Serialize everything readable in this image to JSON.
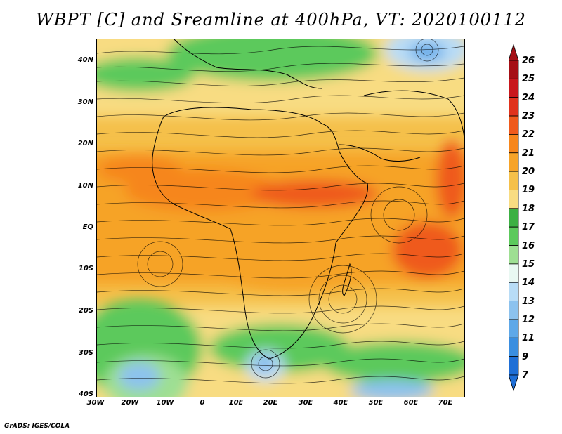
{
  "title": "WBPT [C] and Sreamline at 400hPa, VT: 2020100112",
  "axes": {
    "lat_labels": [
      "40N",
      "30N",
      "20N",
      "10N",
      "EQ",
      "10S",
      "20S",
      "30S",
      "40S"
    ],
    "lon_labels": [
      "30W",
      "20W",
      "10W",
      "0",
      "10E",
      "20E",
      "30E",
      "40E",
      "50E",
      "60E",
      "70E"
    ]
  },
  "colorbar": {
    "labels": [
      "26",
      "25",
      "24",
      "23",
      "22",
      "21",
      "20",
      "19",
      "18",
      "17",
      "16",
      "15",
      "14",
      "13",
      "12",
      "11",
      "9",
      "7"
    ],
    "colors": [
      "#a50f15",
      "#c8171c",
      "#e0321c",
      "#ef5a1c",
      "#f6861c",
      "#f6a328",
      "#f5c04a",
      "#f8dc82",
      "#3cb043",
      "#5cc95c",
      "#9edf93",
      "#e9f8f2",
      "#b8dcf6",
      "#8cc2ee",
      "#5ea8e8",
      "#3a8ee0",
      "#1f6fd6"
    ],
    "arrow_top": "#a50f15",
    "arrow_bottom": "#1f6fd6"
  },
  "credit": "GrADS: IGES/COLA"
}
